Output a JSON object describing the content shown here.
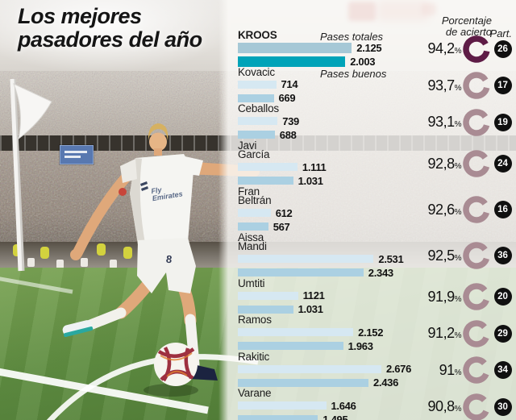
{
  "title": {
    "line1": "Los mejores",
    "line2": "pasadores del año"
  },
  "photo": {
    "jersey_sponsor": "Fly Emirates",
    "shorts_number": "8"
  },
  "chart_data": {
    "type": "bar",
    "orientation": "horizontal",
    "headers": {
      "pct_line1": "Porcentaje",
      "pct_line2": "de acierto",
      "part": "Part."
    },
    "annotations": {
      "totales": "Pases totales",
      "buenos": "Pases buenos"
    },
    "unit": "%",
    "x_max": 2676,
    "players": [
      {
        "name_lines": [
          "KROOS"
        ],
        "totales": 2125,
        "buenos": 2003,
        "totales_display": "2.125",
        "buenos_display": "2.003",
        "pct": 94.2,
        "pct_display": "94,2",
        "part": 26,
        "highlight": true
      },
      {
        "name_lines": [
          "Kovacic"
        ],
        "totales": 714,
        "buenos": 669,
        "totales_display": "714",
        "buenos_display": "669",
        "pct": 93.7,
        "pct_display": "93,7",
        "part": 17,
        "highlight": false
      },
      {
        "name_lines": [
          "Ceballos"
        ],
        "totales": 739,
        "buenos": 688,
        "totales_display": "739",
        "buenos_display": "688",
        "pct": 93.1,
        "pct_display": "93,1",
        "part": 19,
        "highlight": false
      },
      {
        "name_lines": [
          "Javi",
          "García"
        ],
        "totales": 1111,
        "buenos": 1031,
        "totales_display": "1.111",
        "buenos_display": "1.031",
        "pct": 92.8,
        "pct_display": "92,8",
        "part": 24,
        "highlight": false
      },
      {
        "name_lines": [
          "Fran",
          "Beltrán"
        ],
        "totales": 612,
        "buenos": 567,
        "totales_display": "612",
        "buenos_display": "567",
        "pct": 92.6,
        "pct_display": "92,6",
        "part": 16,
        "highlight": false
      },
      {
        "name_lines": [
          "Aissa",
          "Mandi"
        ],
        "totales": 2531,
        "buenos": 2343,
        "totales_display": "2.531",
        "buenos_display": "2.343",
        "pct": 92.5,
        "pct_display": "92,5",
        "part": 36,
        "highlight": false
      },
      {
        "name_lines": [
          "Umtiti"
        ],
        "totales": 1121,
        "buenos": 1031,
        "totales_display": "1121",
        "buenos_display": "1.031",
        "pct": 91.9,
        "pct_display": "91,9",
        "part": 20,
        "highlight": false
      },
      {
        "name_lines": [
          "Ramos"
        ],
        "totales": 2152,
        "buenos": 1963,
        "totales_display": "2.152",
        "buenos_display": "1.963",
        "pct": 91.2,
        "pct_display": "91,2",
        "part": 29,
        "highlight": false
      },
      {
        "name_lines": [
          "Rakitic"
        ],
        "totales": 2676,
        "buenos": 2436,
        "totales_display": "2.676",
        "buenos_display": "2.436",
        "pct": 91.0,
        "pct_display": "91",
        "part": 34,
        "highlight": false
      },
      {
        "name_lines": [
          "Varane"
        ],
        "totales": 1646,
        "buenos": 1495,
        "totales_display": "1.646",
        "buenos_display": "1.495",
        "pct": 90.8,
        "pct_display": "90,8",
        "part": 30,
        "highlight": false
      }
    ],
    "colors": {
      "bar_totales": "#d6e8f2",
      "bar_buenos": "#abd0e2",
      "bar_totales_highlight": "#a6c8d6",
      "bar_buenos_highlight": "#00a3b8",
      "ring": "#a98b93",
      "ring_highlight": "#5e1c46",
      "part_badge": "#101010"
    }
  }
}
